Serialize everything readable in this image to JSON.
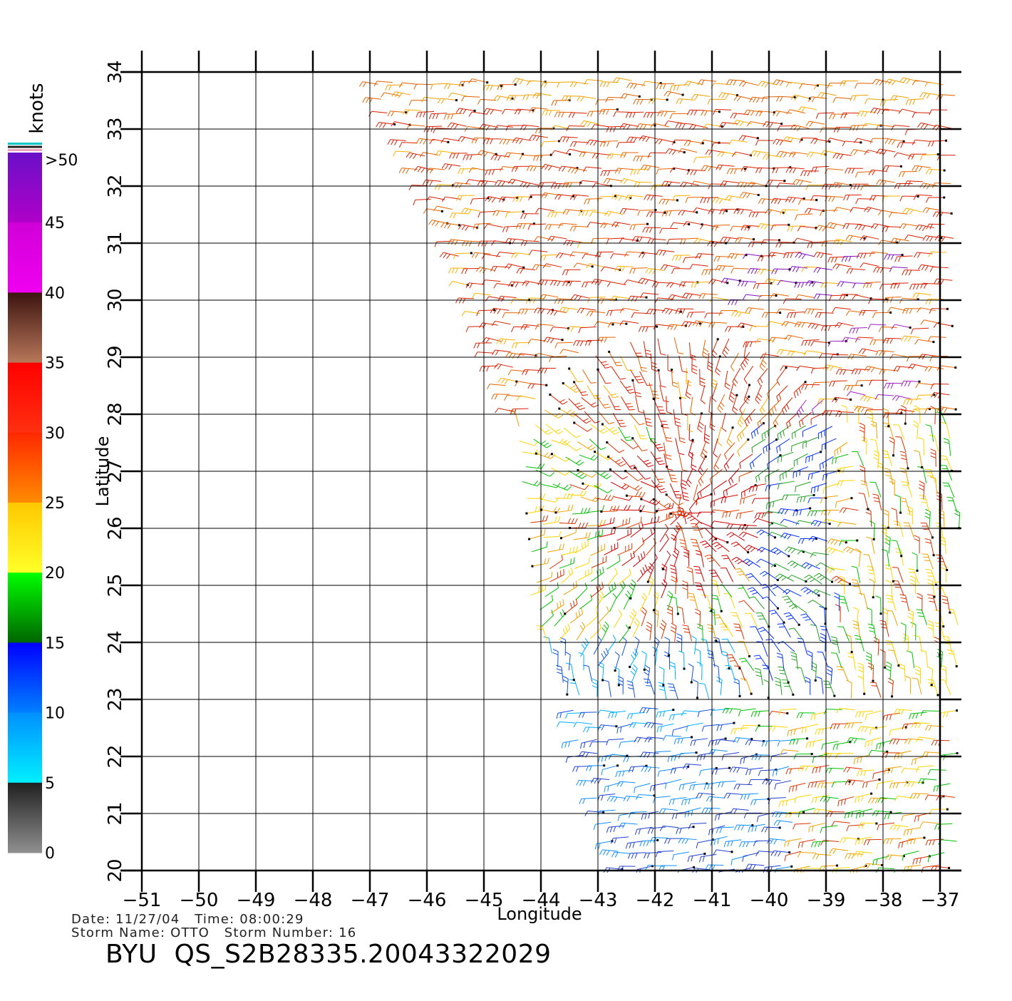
{
  "map": {
    "lon_ticks": [
      -51,
      -50,
      -49,
      -48,
      -47,
      -46,
      -45,
      -44,
      -43,
      -42,
      -41,
      -40,
      -39,
      -38,
      -37
    ],
    "lon_tick_labels": [
      "−51",
      "−50",
      "−49",
      "−48",
      "−47",
      "−46",
      "−45",
      "−44",
      "−43",
      "−42",
      "−41",
      "−40",
      "−39",
      "−38",
      "−37"
    ],
    "lat_ticks": [
      20,
      21,
      22,
      23,
      24,
      25,
      26,
      27,
      28,
      29,
      30,
      31,
      32,
      33,
      34
    ],
    "lat_tick_labels": [
      "20",
      "21",
      "22",
      "23",
      "24",
      "25",
      "26",
      "27",
      "28",
      "29",
      "30",
      "31",
      "32",
      "33",
      "34"
    ],
    "lon_range": [
      -51,
      -37
    ],
    "lat_range": [
      20,
      34
    ],
    "xlabel": "Longitude",
    "ylabel": "Latitude",
    "grid": true
  },
  "legend": {
    "title": "knots",
    "labels": [
      ">50",
      "45",
      "40",
      "35",
      "30",
      "25",
      "20",
      "15",
      "10",
      "5",
      "0"
    ],
    "accent_colors": [
      "#00c8c8",
      "#202020",
      "#f0a0c0"
    ]
  },
  "header": {
    "date_line": "Date: 11/27/04   Time: 08:00:29",
    "storm_line": "Storm Name: OTTO   Storm Number: 16",
    "product_title": "BYU  QS_S2B28335.20043322029"
  }
}
